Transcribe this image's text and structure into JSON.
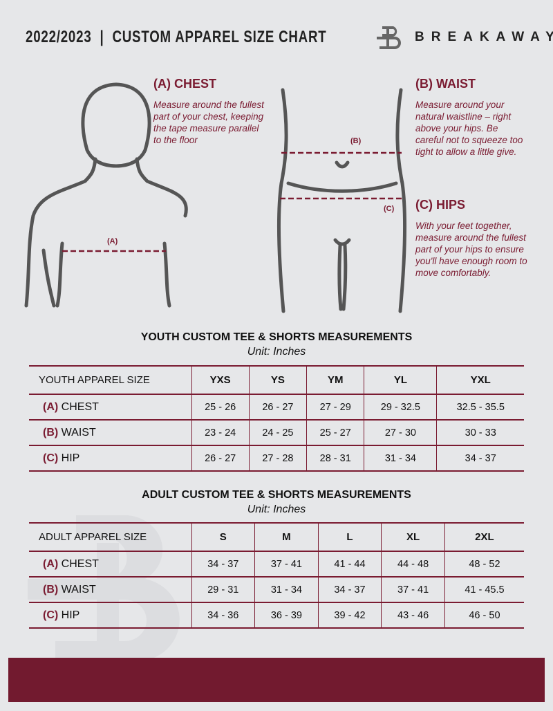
{
  "header": {
    "title": "2022/2023  |  CUSTOM APPAREL SIZE CHART",
    "brand": "BREAKAWAY",
    "logo_letter": "B"
  },
  "measure": {
    "chest": {
      "heading": "(A) CHEST",
      "text": "Measure around the fullest part of your chest, keeping the tape measure parallel to the floor",
      "marker": "(A)"
    },
    "waist": {
      "heading": "(B) WAIST",
      "text": "Measure around your natural waistline – right above your hips. Be careful not to squeeze too tight to allow a little give.",
      "marker": "(B)"
    },
    "hips": {
      "heading": "(C) HIPS",
      "text": "With your feet together, measure around the fullest part of your hips to ensure you'll have enough room to move comfortably.",
      "marker": "(C)"
    }
  },
  "youth": {
    "title": "YOUTH CUSTOM TEE & SHORTS MEASUREMENTS",
    "unit": "Unit: Inches",
    "header": [
      "YOUTH APPAREL SIZE",
      "YXS",
      "YS",
      "YM",
      "YL",
      "YXL"
    ],
    "rows": [
      {
        "letter": "(A)",
        "label": "CHEST",
        "values": [
          "25 - 26",
          "26 - 27",
          "27 - 29",
          "29 - 32.5",
          "32.5 - 35.5"
        ]
      },
      {
        "letter": "(B)",
        "label": "WAIST",
        "values": [
          "23 - 24",
          "24 - 25",
          "25 - 27",
          "27 - 30",
          "30 - 33"
        ]
      },
      {
        "letter": "(C)",
        "label": "HIP",
        "values": [
          "26 - 27",
          "27 - 28",
          "28 - 31",
          "31 - 34",
          "34 - 37"
        ]
      }
    ]
  },
  "adult": {
    "title": "ADULT CUSTOM TEE & SHORTS MEASUREMENTS",
    "unit": "Unit: Inches",
    "header": [
      "ADULT APPAREL SIZE",
      "S",
      "M",
      "L",
      "XL",
      "2XL"
    ],
    "rows": [
      {
        "letter": "(A)",
        "label": "CHEST",
        "values": [
          "34 - 37",
          "37 - 41",
          "41 - 44",
          "44 - 48",
          "48 - 52"
        ]
      },
      {
        "letter": "(B)",
        "label": "WAIST",
        "values": [
          "29 - 31",
          "31 - 34",
          "34 - 37",
          "37 - 41",
          "41 - 45.5"
        ]
      },
      {
        "letter": "(C)",
        "label": "HIP",
        "values": [
          "34 - 36",
          "36 - 39",
          "39 - 42",
          "43 - 46",
          "46 - 50"
        ]
      }
    ]
  },
  "colors": {
    "accent": "#7a1b31",
    "background": "#e6e7e9",
    "footer": "#721a2f"
  }
}
